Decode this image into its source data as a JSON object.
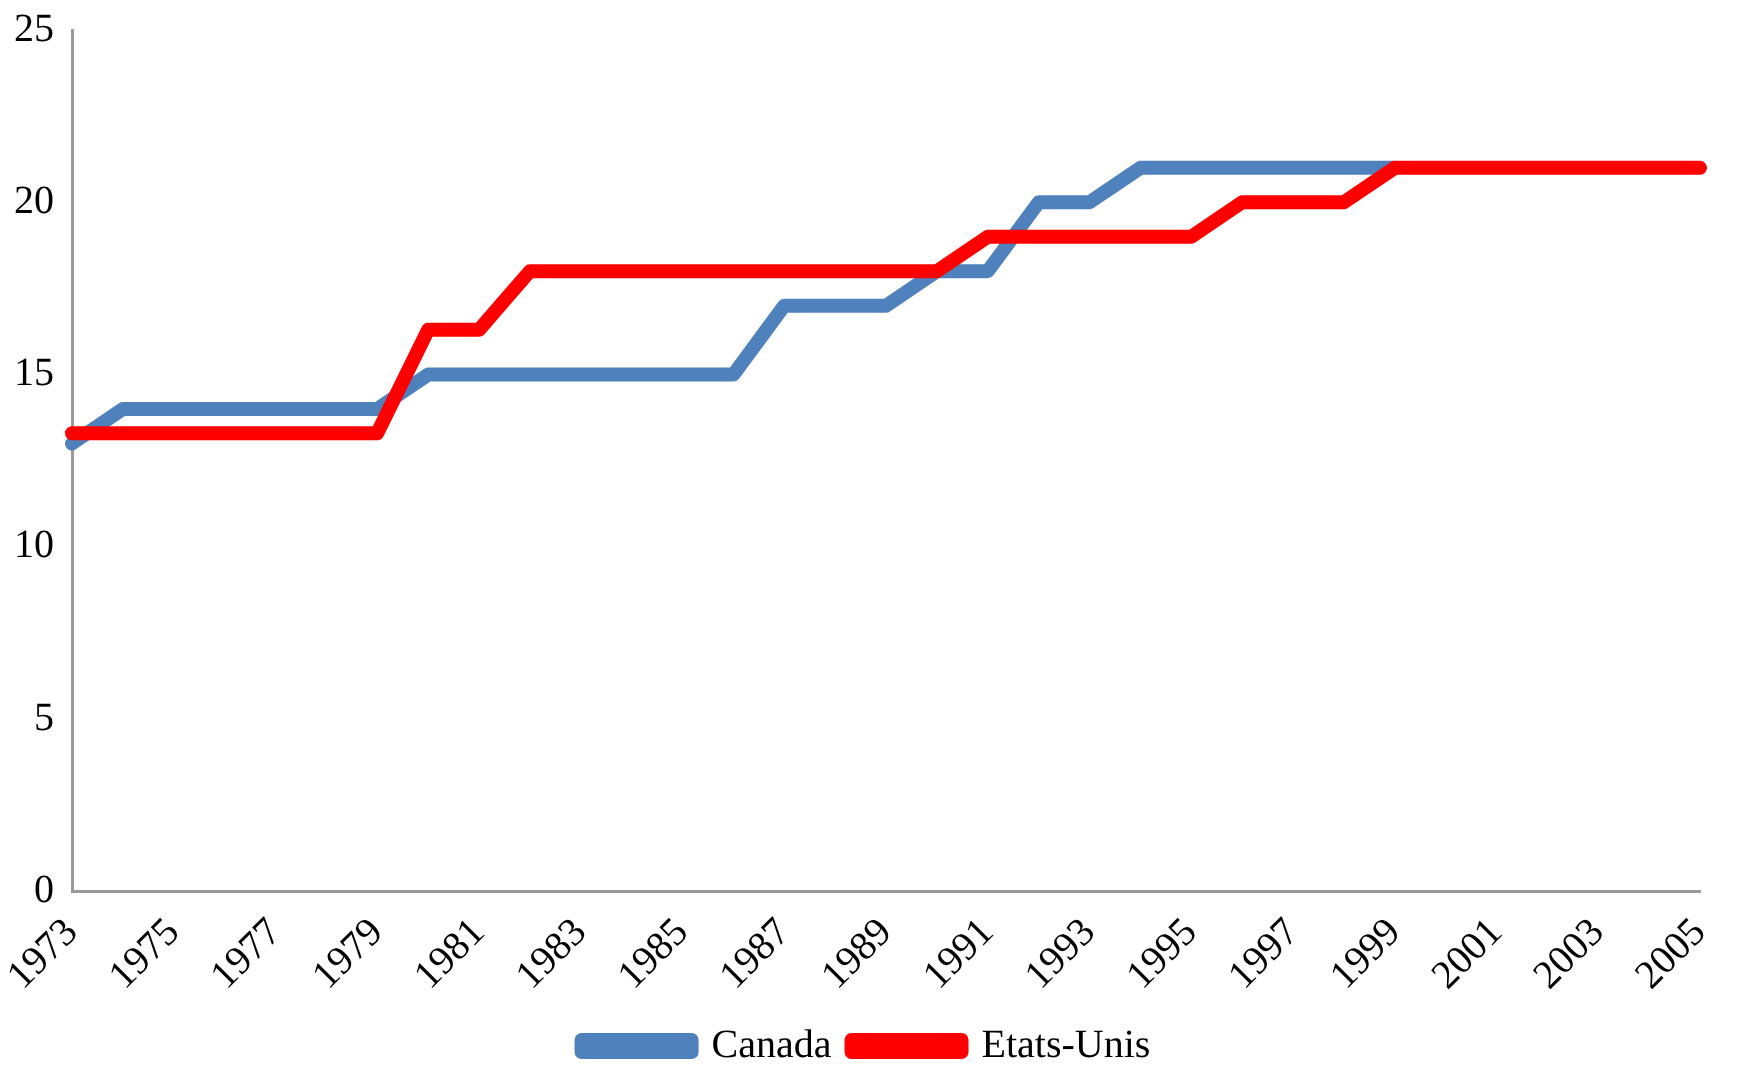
{
  "chart_data": {
    "type": "line",
    "categories": [
      "1973",
      null,
      "1975",
      null,
      "1977",
      null,
      "1979",
      null,
      "1981",
      null,
      "1983",
      null,
      "1985",
      null,
      "1987",
      null,
      "1989",
      null,
      "1991",
      null,
      "1993",
      null,
      "1995",
      null,
      "1997",
      null,
      "1999",
      null,
      "2001",
      null,
      "2003",
      null,
      "2005"
    ],
    "series": [
      {
        "name": "Canada",
        "color": "#4f81bd",
        "values": [
          13,
          14,
          14,
          14,
          14,
          14,
          14,
          15,
          15,
          15,
          15,
          15,
          15,
          15,
          17,
          17,
          17,
          18,
          18,
          20,
          20,
          21,
          21,
          21,
          21,
          21,
          21,
          null,
          null,
          null,
          null,
          null,
          null
        ]
      },
      {
        "name": "Etats-Unis",
        "color": "#ff0000",
        "values": [
          13.3,
          13.3,
          13.3,
          13.3,
          13.3,
          13.3,
          13.3,
          16.3,
          16.3,
          18,
          18,
          18,
          18,
          18,
          18,
          18,
          18,
          18,
          19,
          19,
          19,
          19,
          19,
          20,
          20,
          20,
          21,
          21,
          21,
          21,
          21,
          21,
          21
        ]
      }
    ],
    "ylim": [
      0,
      25
    ],
    "yticks": [
      0,
      5,
      10,
      15,
      20,
      25
    ],
    "grid": false,
    "legend": "bottom",
    "marker": "none",
    "line_style": "solid"
  }
}
